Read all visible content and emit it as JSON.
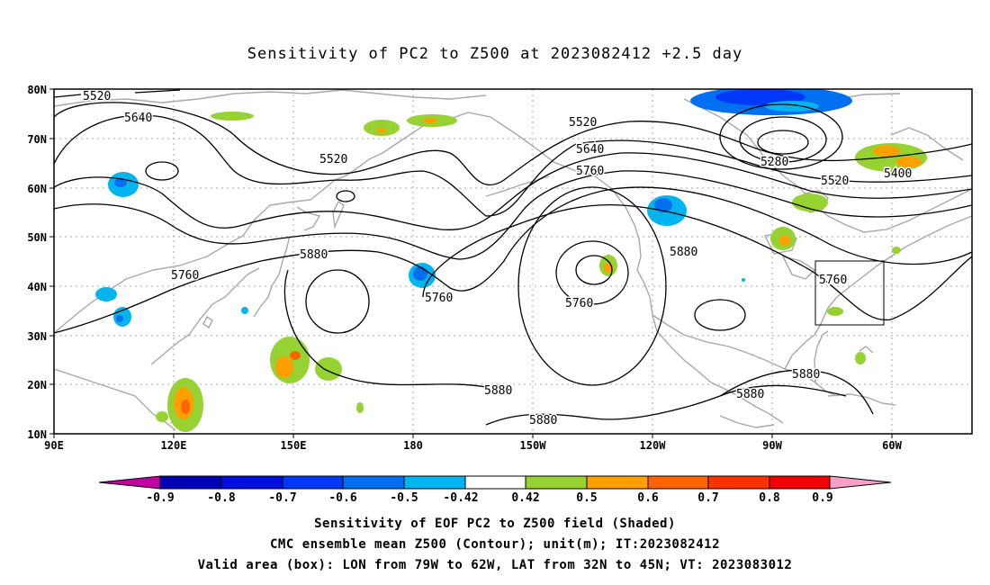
{
  "title": "Sensitivity of PC2 to Z500 at 2023082412 +2.5 day",
  "map": {
    "lat_labels": [
      "80N",
      "70N",
      "60N",
      "50N",
      "40N",
      "30N",
      "20N",
      "10N"
    ],
    "lon_labels": [
      "90E",
      "120E",
      "150E",
      "180",
      "150W",
      "120W",
      "90W",
      "60W"
    ]
  },
  "contour_labels": [
    {
      "text": "5520"
    },
    {
      "text": "5640"
    },
    {
      "text": "5520"
    },
    {
      "text": "5760"
    },
    {
      "text": "5880"
    },
    {
      "text": "5760"
    },
    {
      "text": "5520"
    },
    {
      "text": "5640"
    },
    {
      "text": "5760"
    },
    {
      "text": "5760"
    },
    {
      "text": "5880"
    },
    {
      "text": "5280"
    },
    {
      "text": "5400"
    },
    {
      "text": "5520"
    },
    {
      "text": "5760"
    },
    {
      "text": "5880"
    },
    {
      "text": "5880"
    },
    {
      "text": "5880"
    },
    {
      "text": "5880"
    }
  ],
  "colorbar": {
    "labels": [
      "-0.9",
      "-0.8",
      "-0.7",
      "-0.6",
      "-0.5",
      "-0.42",
      "0.42",
      "0.5",
      "0.6",
      "0.7",
      "0.8",
      "0.9"
    ],
    "colors": [
      "#c000a0",
      "#0000b4",
      "#0010e0",
      "#0038f8",
      "#0070f0",
      "#00b4f0",
      "#ffffff",
      "#96d232",
      "#ffa000",
      "#ff6400",
      "#ff3200",
      "#f00000",
      "#f8a0c8"
    ]
  },
  "valid_box": {
    "lon_w": "79W",
    "lon_e": "62W",
    "lat_s": "32N",
    "lat_n": "45N"
  },
  "footer": {
    "line1": "Sensitivity of EOF PC2 to Z500 field (Shaded)",
    "line2": "CMC ensemble mean Z500 (Contour); unit(m); IT:2023082412",
    "line3": "Valid area (box): LON from 79W to 62W, LAT from 32N to 45N; VT: 2023083012"
  }
}
